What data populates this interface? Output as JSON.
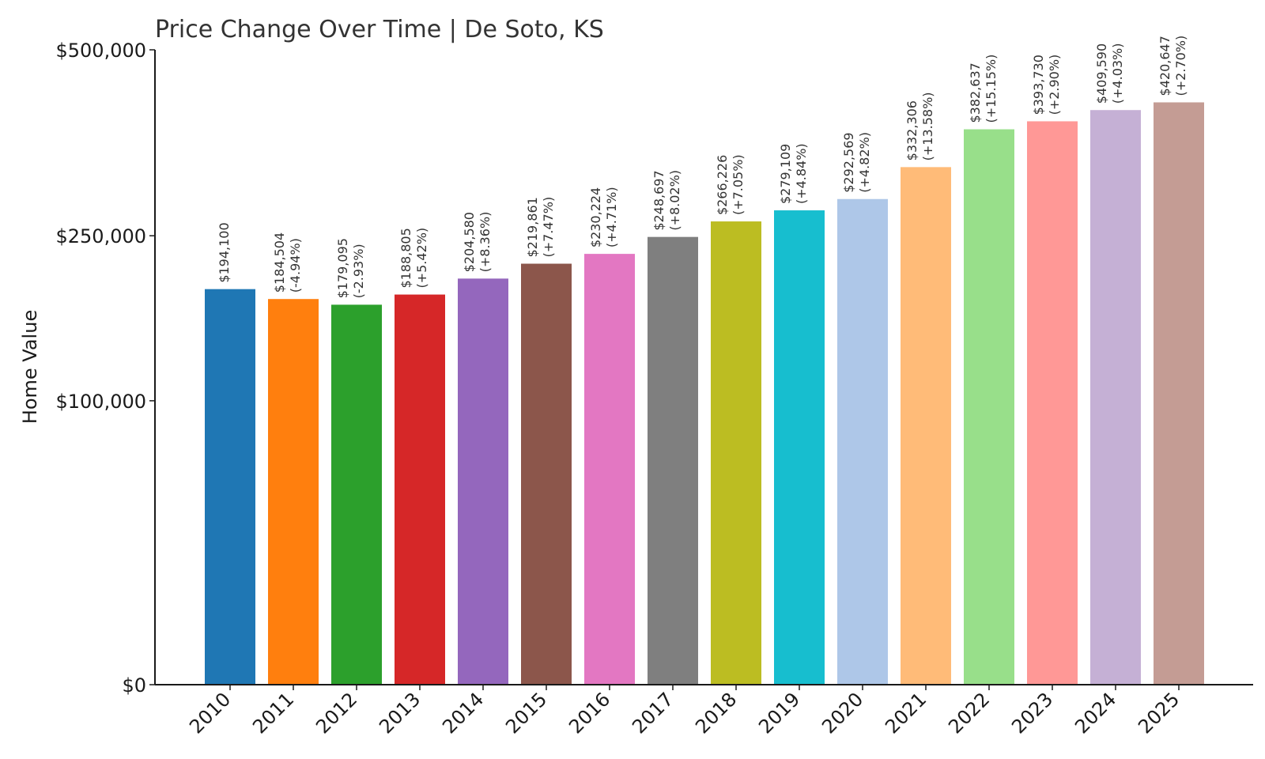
{
  "chart_data": {
    "type": "bar",
    "title": "Price Change Over Time | De Soto, KS",
    "xlabel": "",
    "ylabel": "Home Value",
    "ylim": [
      0,
      500000
    ],
    "y_scale": "sqrt",
    "y_ticks": [
      0,
      100000,
      250000,
      500000
    ],
    "y_tick_labels": [
      "$0",
      "$100,000",
      "$250,000",
      "$500,000"
    ],
    "categories": [
      "2010",
      "2011",
      "2012",
      "2013",
      "2014",
      "2015",
      "2016",
      "2017",
      "2018",
      "2019",
      "2020",
      "2021",
      "2022",
      "2023",
      "2024",
      "2025"
    ],
    "values": [
      194100,
      184504,
      179095,
      188805,
      204580,
      219861,
      230224,
      248697,
      266226,
      279109,
      292569,
      332306,
      382637,
      393730,
      409590,
      420647
    ],
    "value_labels": [
      "$194,100",
      "$184,504",
      "$179,095",
      "$188,805",
      "$204,580",
      "$219,861",
      "$230,224",
      "$248,697",
      "$266,226",
      "$279,109",
      "$292,569",
      "$332,306",
      "$382,637",
      "$393,730",
      "$409,590",
      "$420,647"
    ],
    "change_labels": [
      "",
      "(-4.94%)",
      "(-2.93%)",
      "(+5.42%)",
      "(+8.36%)",
      "(+7.47%)",
      "(+4.71%)",
      "(+8.02%)",
      "(+7.05%)",
      "(+4.84%)",
      "(+4.82%)",
      "(+13.58%)",
      "(+15.15%)",
      "(+2.90%)",
      "(+4.03%)",
      "(+2.70%)"
    ],
    "colors": [
      "#1f77b4",
      "#ff7f0e",
      "#2ca02c",
      "#d62728",
      "#9467bd",
      "#8c564b",
      "#e377c2",
      "#7f7f7f",
      "#bcbd22",
      "#17becf",
      "#aec7e8",
      "#ffbb78",
      "#98df8a",
      "#ff9896",
      "#c5b0d5",
      "#c49c94"
    ],
    "grid": false,
    "legend": "none"
  }
}
